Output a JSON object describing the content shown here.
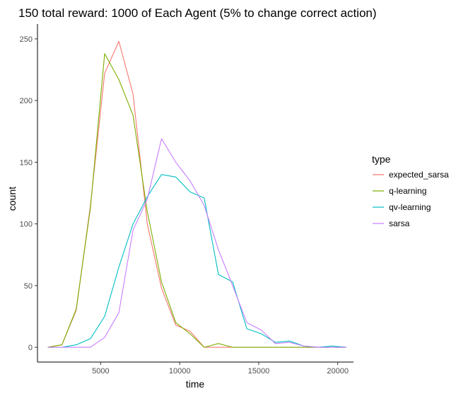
{
  "chart_data": {
    "type": "line",
    "title": "150 total reward: 1000 of Each Agent (5% to change correct action)",
    "xlabel": "time",
    "ylabel": "count",
    "xlim": [
      1000,
      21000
    ],
    "ylim": [
      -12,
      262
    ],
    "x_ticks": [
      5000,
      10000,
      15000,
      20000
    ],
    "x_tick_labels": [
      "5000",
      "10000",
      "15000",
      "20000"
    ],
    "y_ticks": [
      0,
      50,
      100,
      150,
      200,
      250
    ],
    "y_tick_labels": [
      "0",
      "50",
      "100",
      "150",
      "200",
      "250"
    ],
    "grid": false,
    "legend": {
      "title": "type",
      "placement": "right"
    },
    "x": [
      1650,
      2550,
      3450,
      4350,
      5250,
      6150,
      7050,
      7950,
      8850,
      9750,
      10650,
      11550,
      12450,
      13350,
      14250,
      15150,
      16050,
      16950,
      17850,
      18750,
      19650,
      20550
    ],
    "series": [
      {
        "name": "expected_sarsa",
        "color": "#F8766D",
        "values": [
          0,
          2,
          30,
          115,
          222,
          248,
          205,
          100,
          48,
          18,
          13,
          0,
          0,
          0,
          0,
          0,
          0,
          0,
          0,
          0,
          0,
          0
        ]
      },
      {
        "name": "q-learning",
        "color": "#7CAE00",
        "values": [
          0,
          2,
          31,
          113,
          238,
          217,
          188,
          110,
          53,
          20,
          11,
          0,
          3,
          0,
          0,
          0,
          0,
          0,
          0,
          0,
          0,
          0
        ]
      },
      {
        "name": "qv-learning",
        "color": "#00BFC4",
        "values": [
          0,
          0,
          2,
          7,
          25,
          65,
          100,
          122,
          140,
          138,
          126,
          121,
          59,
          53,
          15,
          11,
          4,
          5,
          1,
          0,
          1,
          0
        ]
      },
      {
        "name": "sarsa",
        "color": "#C77CFF",
        "values": [
          0,
          0,
          0,
          0,
          8,
          28,
          95,
          120,
          169,
          150,
          135,
          115,
          79,
          50,
          20,
          14,
          3,
          4,
          1,
          0,
          0,
          0
        ]
      }
    ]
  }
}
